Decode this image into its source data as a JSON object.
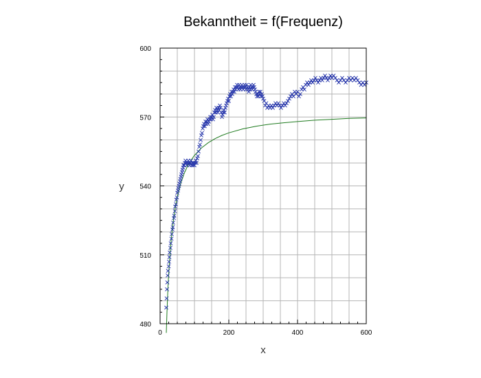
{
  "chart_data": {
    "type": "scatter",
    "title": "Bekanntheit = f(Frequenz)",
    "xlabel": "x",
    "ylabel": "y",
    "xlim": [
      0,
      600
    ],
    "ylim": [
      480,
      600
    ],
    "xticks": [
      0,
      200,
      400,
      600
    ],
    "yticks": [
      480,
      510,
      540,
      570,
      600
    ],
    "x_tick_labels": [
      "0",
      "200",
      "400",
      "600"
    ],
    "y_tick_labels": [
      "480",
      "510",
      "540",
      "570",
      "600"
    ],
    "grid": true,
    "legend": "none",
    "colors": {
      "points": "#1f2fa8",
      "fit": "#1d7a1d",
      "grid": "#b4b4b4",
      "axes": "#000000"
    },
    "series": [
      {
        "kind": "points",
        "marker": "x",
        "points": [
          [
            18,
            487
          ],
          [
            19,
            491
          ],
          [
            20,
            495
          ],
          [
            21,
            498
          ],
          [
            22,
            501
          ],
          [
            23,
            503
          ],
          [
            25,
            505
          ],
          [
            26,
            507
          ],
          [
            27,
            509
          ],
          [
            28,
            511
          ],
          [
            30,
            513
          ],
          [
            31,
            515
          ],
          [
            33,
            517
          ],
          [
            34,
            519
          ],
          [
            36,
            521
          ],
          [
            37,
            522
          ],
          [
            38,
            524
          ],
          [
            40,
            526
          ],
          [
            41,
            527
          ],
          [
            43,
            529
          ],
          [
            44,
            531
          ],
          [
            46,
            532
          ],
          [
            47,
            534
          ],
          [
            49,
            535
          ],
          [
            50,
            537
          ],
          [
            52,
            538
          ],
          [
            53,
            539
          ],
          [
            55,
            540
          ],
          [
            56,
            541
          ],
          [
            58,
            542
          ],
          [
            59,
            543
          ],
          [
            61,
            544
          ],
          [
            62,
            545
          ],
          [
            64,
            546
          ],
          [
            65,
            547
          ],
          [
            67,
            548
          ],
          [
            68,
            549
          ],
          [
            70,
            549
          ],
          [
            72,
            550
          ],
          [
            74,
            551
          ],
          [
            76,
            550
          ],
          [
            78,
            549
          ],
          [
            80,
            550
          ],
          [
            82,
            551
          ],
          [
            84,
            550
          ],
          [
            86,
            549
          ],
          [
            88,
            550
          ],
          [
            90,
            551
          ],
          [
            92,
            549
          ],
          [
            94,
            550
          ],
          [
            96,
            549
          ],
          [
            98,
            550
          ],
          [
            100,
            549
          ],
          [
            102,
            550
          ],
          [
            104,
            551
          ],
          [
            106,
            550
          ],
          [
            108,
            552
          ],
          [
            110,
            553
          ],
          [
            112,
            555
          ],
          [
            114,
            557
          ],
          [
            116,
            558
          ],
          [
            118,
            560
          ],
          [
            120,
            562
          ],
          [
            122,
            563
          ],
          [
            124,
            565
          ],
          [
            126,
            566
          ],
          [
            128,
            567
          ],
          [
            130,
            566
          ],
          [
            132,
            568
          ],
          [
            134,
            567
          ],
          [
            136,
            568
          ],
          [
            138,
            569
          ],
          [
            140,
            567
          ],
          [
            142,
            568
          ],
          [
            144,
            569
          ],
          [
            146,
            570
          ],
          [
            148,
            569
          ],
          [
            150,
            570
          ],
          [
            152,
            571
          ],
          [
            154,
            569
          ],
          [
            156,
            570
          ],
          [
            158,
            572
          ],
          [
            160,
            573
          ],
          [
            162,
            572
          ],
          [
            164,
            574
          ],
          [
            166,
            573
          ],
          [
            168,
            572
          ],
          [
            170,
            574
          ],
          [
            172,
            573
          ],
          [
            174,
            575
          ],
          [
            176,
            574
          ],
          [
            178,
            572
          ],
          [
            180,
            570
          ],
          [
            182,
            571
          ],
          [
            184,
            572
          ],
          [
            186,
            573
          ],
          [
            188,
            572
          ],
          [
            190,
            574
          ],
          [
            192,
            575
          ],
          [
            194,
            576
          ],
          [
            196,
            577
          ],
          [
            198,
            578
          ],
          [
            200,
            577
          ],
          [
            202,
            579
          ],
          [
            204,
            580
          ],
          [
            206,
            579
          ],
          [
            208,
            581
          ],
          [
            210,
            580
          ],
          [
            212,
            581
          ],
          [
            214,
            582
          ],
          [
            216,
            581
          ],
          [
            218,
            583
          ],
          [
            220,
            582
          ],
          [
            222,
            583
          ],
          [
            224,
            584
          ],
          [
            226,
            583
          ],
          [
            228,
            582
          ],
          [
            230,
            584
          ],
          [
            232,
            583
          ],
          [
            234,
            582
          ],
          [
            236,
            583
          ],
          [
            238,
            584
          ],
          [
            240,
            583
          ],
          [
            242,
            582
          ],
          [
            244,
            583
          ],
          [
            246,
            584
          ],
          [
            248,
            583
          ],
          [
            250,
            582
          ],
          [
            252,
            584
          ],
          [
            254,
            583
          ],
          [
            256,
            582
          ],
          [
            258,
            581
          ],
          [
            260,
            583
          ],
          [
            262,
            582
          ],
          [
            264,
            584
          ],
          [
            266,
            583
          ],
          [
            268,
            582
          ],
          [
            270,
            583
          ],
          [
            272,
            584
          ],
          [
            274,
            583
          ],
          [
            276,
            582
          ],
          [
            278,
            581
          ],
          [
            280,
            580
          ],
          [
            282,
            579
          ],
          [
            284,
            580
          ],
          [
            286,
            579
          ],
          [
            288,
            581
          ],
          [
            290,
            580
          ],
          [
            292,
            581
          ],
          [
            294,
            579
          ],
          [
            296,
            580
          ],
          [
            298,
            579
          ],
          [
            300,
            578
          ],
          [
            303,
            577
          ],
          [
            306,
            575
          ],
          [
            309,
            576
          ],
          [
            312,
            574
          ],
          [
            316,
            575
          ],
          [
            320,
            574
          ],
          [
            324,
            575
          ],
          [
            328,
            574
          ],
          [
            332,
            575
          ],
          [
            336,
            576
          ],
          [
            340,
            575
          ],
          [
            344,
            576
          ],
          [
            348,
            575
          ],
          [
            352,
            574
          ],
          [
            356,
            575
          ],
          [
            360,
            576
          ],
          [
            364,
            575
          ],
          [
            368,
            576
          ],
          [
            372,
            577
          ],
          [
            376,
            578
          ],
          [
            380,
            579
          ],
          [
            384,
            580
          ],
          [
            388,
            579
          ],
          [
            392,
            581
          ],
          [
            396,
            580
          ],
          [
            400,
            581
          ],
          [
            404,
            579
          ],
          [
            408,
            580
          ],
          [
            412,
            582
          ],
          [
            416,
            583
          ],
          [
            420,
            582
          ],
          [
            424,
            584
          ],
          [
            428,
            585
          ],
          [
            432,
            584
          ],
          [
            436,
            585
          ],
          [
            440,
            586
          ],
          [
            444,
            585
          ],
          [
            448,
            586
          ],
          [
            452,
            587
          ],
          [
            456,
            586
          ],
          [
            460,
            585
          ],
          [
            464,
            586
          ],
          [
            468,
            587
          ],
          [
            472,
            586
          ],
          [
            476,
            587
          ],
          [
            480,
            588
          ],
          [
            484,
            587
          ],
          [
            488,
            586
          ],
          [
            492,
            587
          ],
          [
            496,
            588
          ],
          [
            500,
            587
          ],
          [
            505,
            588
          ],
          [
            510,
            587
          ],
          [
            515,
            586
          ],
          [
            520,
            585
          ],
          [
            525,
            586
          ],
          [
            530,
            587
          ],
          [
            535,
            586
          ],
          [
            540,
            585
          ],
          [
            545,
            586
          ],
          [
            550,
            587
          ],
          [
            555,
            586
          ],
          [
            560,
            587
          ],
          [
            565,
            586
          ],
          [
            570,
            587
          ],
          [
            575,
            586
          ],
          [
            580,
            585
          ],
          [
            585,
            584
          ],
          [
            590,
            585
          ],
          [
            595,
            584
          ],
          [
            600,
            585
          ]
        ]
      },
      {
        "kind": "line",
        "points": [
          [
            18,
            476
          ],
          [
            20,
            485
          ],
          [
            23,
            496.3
          ],
          [
            26,
            504.3
          ],
          [
            30,
            512.8
          ],
          [
            35,
            520.5
          ],
          [
            40,
            526.6
          ],
          [
            45,
            531.3
          ],
          [
            50,
            535.2
          ],
          [
            60,
            541.1
          ],
          [
            70,
            545.4
          ],
          [
            80,
            548.7
          ],
          [
            90,
            551.2
          ],
          [
            100,
            553.3
          ],
          [
            120,
            556.5
          ],
          [
            140,
            558.8
          ],
          [
            160,
            560.6
          ],
          [
            180,
            562
          ],
          [
            200,
            563.1
          ],
          [
            240,
            564.8
          ],
          [
            280,
            566
          ],
          [
            320,
            566.9
          ],
          [
            360,
            567.5
          ],
          [
            400,
            568
          ],
          [
            450,
            568.6
          ],
          [
            500,
            569
          ],
          [
            550,
            569.4
          ],
          [
            600,
            569.6
          ]
        ]
      }
    ]
  }
}
